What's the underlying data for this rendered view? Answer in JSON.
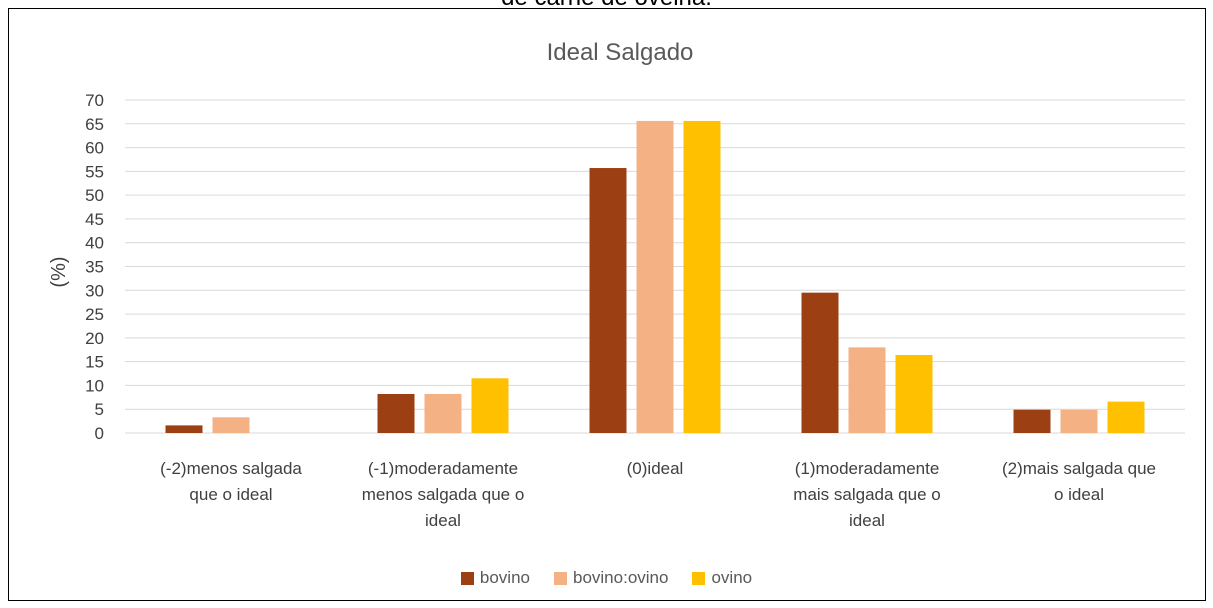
{
  "caption_fragment": "de carne de ovelha.",
  "chart_data": {
    "type": "bar",
    "title": "Ideal Salgado",
    "ylabel": "(%)",
    "xlabel": "",
    "ylim": [
      0,
      70
    ],
    "yticks": [
      0,
      5,
      10,
      15,
      20,
      25,
      30,
      35,
      40,
      45,
      50,
      55,
      60,
      65,
      70
    ],
    "grid": true,
    "legend_position": "bottom",
    "categories": [
      [
        "(-2)menos salgada",
        "que o ideal"
      ],
      [
        "(-1)moderadamente",
        "menos salgada que o",
        "ideal"
      ],
      [
        "(0)ideal"
      ],
      [
        "(1)moderadamente",
        "mais salgada que o",
        "ideal"
      ],
      [
        "(2)mais salgada que",
        "o ideal"
      ]
    ],
    "series": [
      {
        "name": "bovino",
        "color": "#9C3F12",
        "values": [
          1.6,
          8.2,
          55.7,
          29.5,
          4.9
        ]
      },
      {
        "name": "bovino:ovino",
        "color": "#F4B183",
        "values": [
          3.3,
          8.2,
          65.6,
          18.0,
          4.9
        ]
      },
      {
        "name": "ovino",
        "color": "#FFC000",
        "values": [
          0,
          11.5,
          65.6,
          16.4,
          6.6
        ]
      }
    ]
  }
}
